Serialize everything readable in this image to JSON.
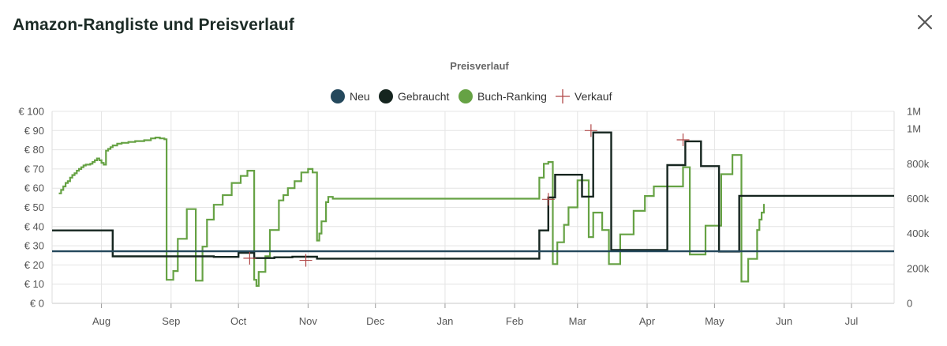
{
  "modal": {
    "title": "Amazon-Rangliste und Preisverlauf",
    "close_icon": "close-icon"
  },
  "colors": {
    "neu": "#24485c",
    "gebraucht": "#15251f",
    "ranking": "#66a244",
    "verkauf": "#b14848",
    "grid": "#e4e4e4"
  },
  "chart_data": {
    "type": "line",
    "title": "Preisverlauf",
    "legend_position": "top-center",
    "legend": [
      {
        "label": "Neu",
        "marker": "circle",
        "color": "#24485c"
      },
      {
        "label": "Gebraucht",
        "marker": "circle",
        "color": "#15251f"
      },
      {
        "label": "Buch-Ranking",
        "marker": "circle",
        "color": "#66a244"
      },
      {
        "label": "Verkauf",
        "marker": "cross",
        "color": "#b14848"
      }
    ],
    "x_range": [
      "2024-07-10",
      "2025-07-20"
    ],
    "x_ticks": [
      {
        "date": "2024-08-01",
        "label": "Aug"
      },
      {
        "date": "2024-09-01",
        "label": "Sep"
      },
      {
        "date": "2024-10-01",
        "label": "Oct"
      },
      {
        "date": "2024-11-01",
        "label": "Nov"
      },
      {
        "date": "2024-12-01",
        "label": "Dec"
      },
      {
        "date": "2025-01-01",
        "label": "Jan"
      },
      {
        "date": "2025-02-01",
        "label": "Feb"
      },
      {
        "date": "2025-03-01",
        "label": "Mar"
      },
      {
        "date": "2025-04-01",
        "label": "Apr"
      },
      {
        "date": "2025-05-01",
        "label": "May"
      },
      {
        "date": "2025-06-01",
        "label": "Jun"
      },
      {
        "date": "2025-07-01",
        "label": "Jul"
      }
    ],
    "y_left": {
      "range": [
        0,
        100
      ],
      "ticks": [
        {
          "value": 0,
          "label": "€ 0"
        },
        {
          "value": 10,
          "label": "€ 10"
        },
        {
          "value": 20,
          "label": "€ 20"
        },
        {
          "value": 30,
          "label": "€ 30"
        },
        {
          "value": 40,
          "label": "€ 40"
        },
        {
          "value": 50,
          "label": "€ 50"
        },
        {
          "value": 60,
          "label": "€ 60"
        },
        {
          "value": 70,
          "label": "€ 70"
        },
        {
          "value": 80,
          "label": "€ 80"
        },
        {
          "value": 90,
          "label": "€ 90"
        },
        {
          "value": 100,
          "label": "€ 100"
        }
      ]
    },
    "y_right": {
      "range": [
        0,
        1100000
      ],
      "ticks": [
        {
          "value": 0,
          "label": "0"
        },
        {
          "value": 200000,
          "label": "200k"
        },
        {
          "value": 400000,
          "label": "400k"
        },
        {
          "value": 600000,
          "label": "600k"
        },
        {
          "value": 800000,
          "label": "800k"
        },
        {
          "value": 1000000,
          "label": "1M"
        },
        {
          "value": 1100000,
          "label": "1M"
        }
      ]
    },
    "grid": true,
    "series": [
      {
        "name": "Neu",
        "type": "step",
        "axis": "left",
        "color": "#24485c",
        "points": [
          [
            "2024-07-10",
            27.1
          ],
          [
            "2025-07-20",
            27.1
          ]
        ]
      },
      {
        "name": "Gebraucht",
        "type": "step",
        "axis": "left",
        "color": "#15251f",
        "points": [
          [
            "2024-07-10",
            38.0
          ],
          [
            "2024-08-06",
            24.5
          ],
          [
            "2024-09-20",
            24.2
          ],
          [
            "2024-10-01",
            26.3
          ],
          [
            "2024-10-08",
            23.6
          ],
          [
            "2024-10-17",
            24.0
          ],
          [
            "2024-10-25",
            24.3
          ],
          [
            "2024-11-05",
            23.3
          ],
          [
            "2025-02-12",
            38.0
          ],
          [
            "2025-02-16",
            55.2
          ],
          [
            "2025-02-19",
            67.0
          ],
          [
            "2025-03-03",
            55.6
          ],
          [
            "2025-03-08",
            89.0
          ],
          [
            "2025-03-16",
            27.8
          ],
          [
            "2025-04-10",
            72.0
          ],
          [
            "2025-04-18",
            84.4
          ],
          [
            "2025-04-25",
            71.5
          ],
          [
            "2025-05-03",
            27.0
          ],
          [
            "2025-05-12",
            56.0
          ],
          [
            "2025-07-20",
            56.0
          ]
        ]
      },
      {
        "name": "Buch-Ranking",
        "type": "step",
        "axis": "right",
        "color": "#66a244",
        "points": [
          [
            "2024-07-13",
            630000
          ],
          [
            "2024-07-14",
            650000
          ],
          [
            "2024-07-15",
            670000
          ],
          [
            "2024-07-16",
            690000
          ],
          [
            "2024-07-17",
            700000
          ],
          [
            "2024-07-18",
            720000
          ],
          [
            "2024-07-19",
            735000
          ],
          [
            "2024-07-20",
            745000
          ],
          [
            "2024-07-21",
            760000
          ],
          [
            "2024-07-22",
            770000
          ],
          [
            "2024-07-23",
            780000
          ],
          [
            "2024-07-24",
            790000
          ],
          [
            "2024-07-25",
            795000
          ],
          [
            "2024-07-27",
            800000
          ],
          [
            "2024-07-28",
            810000
          ],
          [
            "2024-07-29",
            820000
          ],
          [
            "2024-07-30",
            830000
          ],
          [
            "2024-07-31",
            820000
          ],
          [
            "2024-08-01",
            805000
          ],
          [
            "2024-08-02",
            795000
          ],
          [
            "2024-08-03",
            875000
          ],
          [
            "2024-08-04",
            885000
          ],
          [
            "2024-08-05",
            895000
          ],
          [
            "2024-08-06",
            905000
          ],
          [
            "2024-08-08",
            915000
          ],
          [
            "2024-08-10",
            920000
          ],
          [
            "2024-08-13",
            925000
          ],
          [
            "2024-08-16",
            930000
          ],
          [
            "2024-08-20",
            935000
          ],
          [
            "2024-08-23",
            945000
          ],
          [
            "2024-08-25",
            950000
          ],
          [
            "2024-08-27",
            945000
          ],
          [
            "2024-08-29",
            940000
          ],
          [
            "2024-08-30",
            135000
          ],
          [
            "2024-09-02",
            185000
          ],
          [
            "2024-09-04",
            370000
          ],
          [
            "2024-09-08",
            540000
          ],
          [
            "2024-09-12",
            130000
          ],
          [
            "2024-09-15",
            325000
          ],
          [
            "2024-09-17",
            480000
          ],
          [
            "2024-09-20",
            565000
          ],
          [
            "2024-09-24",
            620000
          ],
          [
            "2024-09-28",
            690000
          ],
          [
            "2024-10-02",
            730000
          ],
          [
            "2024-10-05",
            760000
          ],
          [
            "2024-10-08",
            135000
          ],
          [
            "2024-10-09",
            100000
          ],
          [
            "2024-10-10",
            180000
          ],
          [
            "2024-10-13",
            270000
          ],
          [
            "2024-10-15",
            420000
          ],
          [
            "2024-10-19",
            590000
          ],
          [
            "2024-10-21",
            620000
          ],
          [
            "2024-10-23",
            660000
          ],
          [
            "2024-10-26",
            700000
          ],
          [
            "2024-10-29",
            750000
          ],
          [
            "2024-11-01",
            770000
          ],
          [
            "2024-11-03",
            750000
          ],
          [
            "2024-11-05",
            360000
          ],
          [
            "2024-11-06",
            400000
          ],
          [
            "2024-11-07",
            470000
          ],
          [
            "2024-11-09",
            580000
          ],
          [
            "2024-11-10",
            610000
          ],
          [
            "2024-11-12",
            600000
          ],
          [
            "2025-02-12",
            720000
          ],
          [
            "2025-02-14",
            800000
          ],
          [
            "2025-02-16",
            810000
          ],
          [
            "2025-02-18",
            225000
          ],
          [
            "2025-02-20",
            350000
          ],
          [
            "2025-02-23",
            450000
          ],
          [
            "2025-02-25",
            550000
          ],
          [
            "2025-03-01",
            705000
          ],
          [
            "2025-03-06",
            380000
          ],
          [
            "2025-03-08",
            520000
          ],
          [
            "2025-03-12",
            420000
          ],
          [
            "2025-03-15",
            225000
          ],
          [
            "2025-03-20",
            395000
          ],
          [
            "2025-03-26",
            530000
          ],
          [
            "2025-03-31",
            615000
          ],
          [
            "2025-04-04",
            670000
          ],
          [
            "2025-04-09",
            670000
          ],
          [
            "2025-04-17",
            780000
          ],
          [
            "2025-04-20",
            280000
          ],
          [
            "2025-04-27",
            445000
          ],
          [
            "2025-05-04",
            740000
          ],
          [
            "2025-05-09",
            850000
          ],
          [
            "2025-05-13",
            125000
          ],
          [
            "2025-05-16",
            255000
          ],
          [
            "2025-05-20",
            420000
          ],
          [
            "2025-05-21",
            480000
          ],
          [
            "2025-05-22",
            520000
          ],
          [
            "2025-05-23",
            570000
          ]
        ]
      }
    ],
    "sales": [
      {
        "date": "2024-10-06",
        "value": 23.5
      },
      {
        "date": "2024-10-31",
        "value": 22.4
      },
      {
        "date": "2025-02-16",
        "value": 54.2
      },
      {
        "date": "2025-03-07",
        "value": 90.0
      },
      {
        "date": "2025-04-17",
        "value": 85.2
      }
    ]
  }
}
